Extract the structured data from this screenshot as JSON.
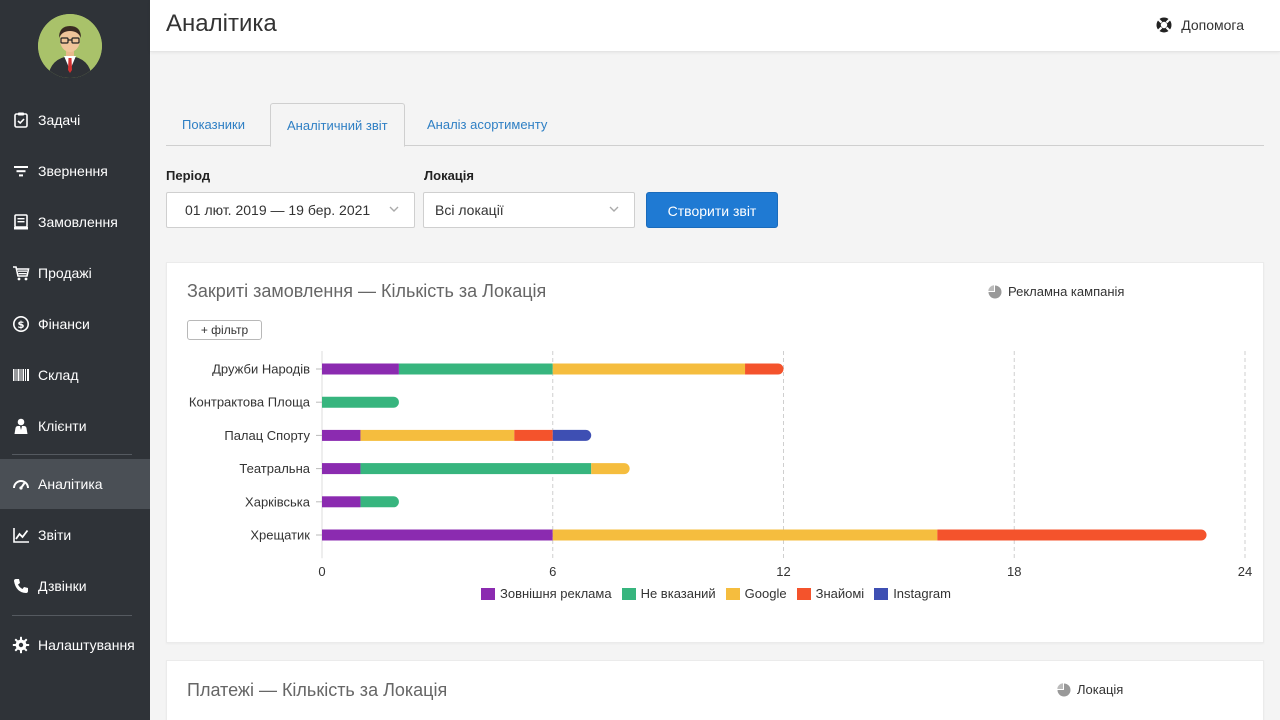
{
  "header": {
    "title": "Аналітика",
    "help_label": "Допомога"
  },
  "sidebar": {
    "items": [
      {
        "label": "Задачі",
        "icon": "clipboard-check-icon",
        "active": false
      },
      {
        "label": "Звернення",
        "icon": "filter-lines-icon",
        "active": false
      },
      {
        "label": "Замовлення",
        "icon": "receipt-icon",
        "active": false
      },
      {
        "label": "Продажі",
        "icon": "shopping-cart-icon",
        "active": false
      },
      {
        "label": "Фінанси",
        "icon": "dollar-circle-icon",
        "active": false
      },
      {
        "label": "Склад",
        "icon": "barcode-icon",
        "active": false
      },
      {
        "label": "Клієнти",
        "icon": "user-icon",
        "active": false
      },
      {
        "label": "Аналітика",
        "icon": "speedometer-icon",
        "active": true
      },
      {
        "label": "Звіти",
        "icon": "line-chart-icon",
        "active": false
      },
      {
        "label": "Дзвінки",
        "icon": "phone-icon",
        "active": false
      },
      {
        "label": "Налаштування",
        "icon": "gear-icon",
        "active": false
      }
    ]
  },
  "tabs": [
    {
      "label": "Показники",
      "active": false
    },
    {
      "label": "Аналітичний звіт",
      "active": true
    },
    {
      "label": "Аналіз асортименту",
      "active": false
    }
  ],
  "filters": {
    "period_label": "Період",
    "period_value": "01 лют. 2019 — 19 бер. 2021",
    "location_label": "Локація",
    "location_value": "Всі локації",
    "submit_label": "Створити звіт"
  },
  "cards": [
    {
      "title": "Закриті замовлення — Кількість за Локація",
      "toggle_label": "Рекламна кампанія",
      "filter_label": "+ фільтр"
    },
    {
      "title": "Платежі — Кількість за Локація",
      "toggle_label": "Локація"
    }
  ],
  "chart_data": {
    "type": "bar",
    "orientation": "horizontal",
    "stacked": true,
    "categories": [
      "Дружби Народів",
      "Контрактова Площа",
      "Палац Спорту",
      "Театральна",
      "Харківська",
      "Хрещатик"
    ],
    "series": [
      {
        "name": "Зовнішня реклама",
        "color": "#8b2bb0",
        "values": [
          2,
          0,
          1,
          1,
          1,
          6
        ]
      },
      {
        "name": "Не вказаний",
        "color": "#37b57e",
        "values": [
          4,
          2,
          0,
          6,
          1,
          0
        ]
      },
      {
        "name": "Google",
        "color": "#f5bd3e",
        "values": [
          5,
          0,
          4,
          1,
          0,
          10
        ]
      },
      {
        "name": "Знайомі",
        "color": "#f4532c",
        "values": [
          1,
          0,
          1,
          0,
          0,
          7
        ]
      },
      {
        "name": "Instagram",
        "color": "#3e4fb3",
        "values": [
          0,
          0,
          1,
          0,
          0,
          0
        ]
      }
    ],
    "xlim": [
      0,
      24
    ],
    "xticks": [
      0,
      6,
      12,
      18,
      24
    ],
    "grid": true,
    "legend_position": "bottom"
  }
}
